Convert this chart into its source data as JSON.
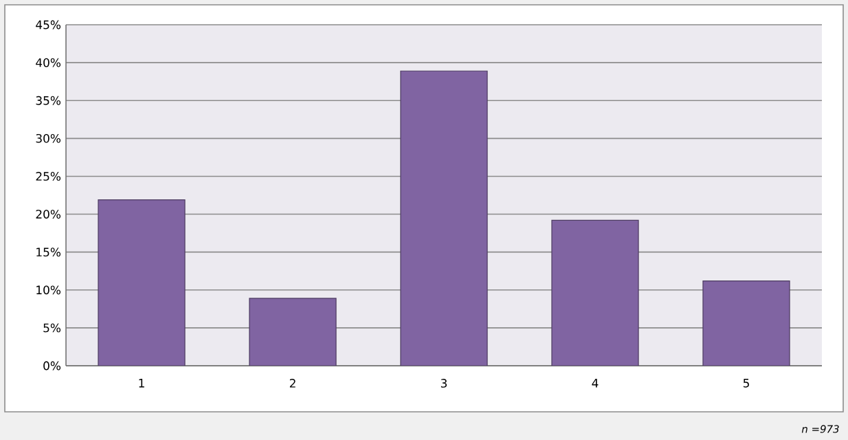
{
  "chart_data": {
    "type": "bar",
    "categories": [
      "1",
      "2",
      "3",
      "4",
      "5"
    ],
    "values": [
      21.9,
      8.9,
      38.9,
      19.2,
      11.2
    ],
    "color": "#8064a2",
    "ylim": [
      0,
      45
    ],
    "yticks": [
      {
        "value": 0,
        "label": "0%"
      },
      {
        "value": 5,
        "label": "5%"
      },
      {
        "value": 10,
        "label": "10%"
      },
      {
        "value": 15,
        "label": "15%"
      },
      {
        "value": 20,
        "label": "20%"
      },
      {
        "value": 25,
        "label": "25%"
      },
      {
        "value": 30,
        "label": "30%"
      },
      {
        "value": 35,
        "label": "35%"
      },
      {
        "value": 40,
        "label": "40%"
      },
      {
        "value": 45,
        "label": "45%"
      }
    ],
    "grid": "y",
    "annotations": [
      "*n =973*"
    ]
  }
}
